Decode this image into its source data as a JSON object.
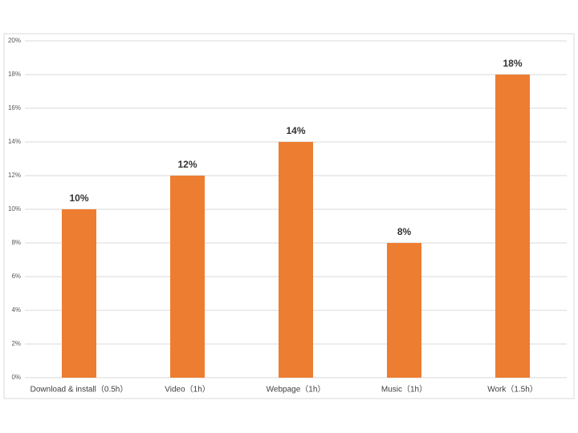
{
  "chart_data": {
    "type": "bar",
    "categories": [
      "Download & install（0.5h）",
      "Video（1h）",
      "Webpage（1h）",
      "Music（1h）",
      "Work（1.5h）"
    ],
    "values": [
      10,
      12,
      14,
      8,
      18
    ],
    "value_labels": [
      "10%",
      "12%",
      "14%",
      "8%",
      "18%"
    ],
    "color": "#ed7d31",
    "ylim": [
      0,
      20
    ],
    "yticks": [
      {
        "value": 0,
        "label": "0%"
      },
      {
        "value": 2,
        "label": "2%"
      },
      {
        "value": 4,
        "label": "4%"
      },
      {
        "value": 6,
        "label": "6%"
      },
      {
        "value": 8,
        "label": "8%"
      },
      {
        "value": 10,
        "label": "10%"
      },
      {
        "value": 12,
        "label": "12%"
      },
      {
        "value": 14,
        "label": "14%"
      },
      {
        "value": 16,
        "label": "16%"
      },
      {
        "value": 18,
        "label": "18%"
      },
      {
        "value": 20,
        "label": "20%"
      }
    ],
    "grid": true
  }
}
